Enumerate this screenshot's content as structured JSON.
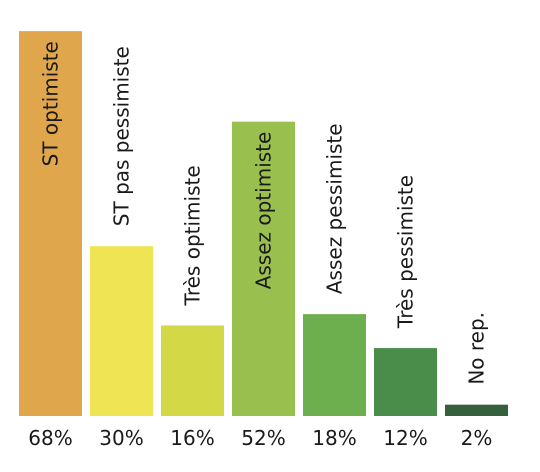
{
  "chart_data": {
    "type": "bar",
    "categories": [
      "ST optimiste",
      "ST pas pessimiste",
      "Très optimiste",
      "Assez optimiste",
      "Assez pessimiste",
      "Très pessimiste",
      "No rep."
    ],
    "values": [
      68,
      30,
      16,
      52,
      18,
      12,
      2
    ],
    "value_labels": [
      "68%",
      "30%",
      "16%",
      "52%",
      "18%",
      "12%",
      "2%"
    ],
    "colors": [
      "#E0A64C",
      "#EEE454",
      "#D3D946",
      "#99BF4F",
      "#6DAF4E",
      "#4A8C49",
      "#34613C"
    ],
    "category_label_placement": "vertical, inside bar or above bar",
    "grid": false,
    "legend": "none"
  }
}
